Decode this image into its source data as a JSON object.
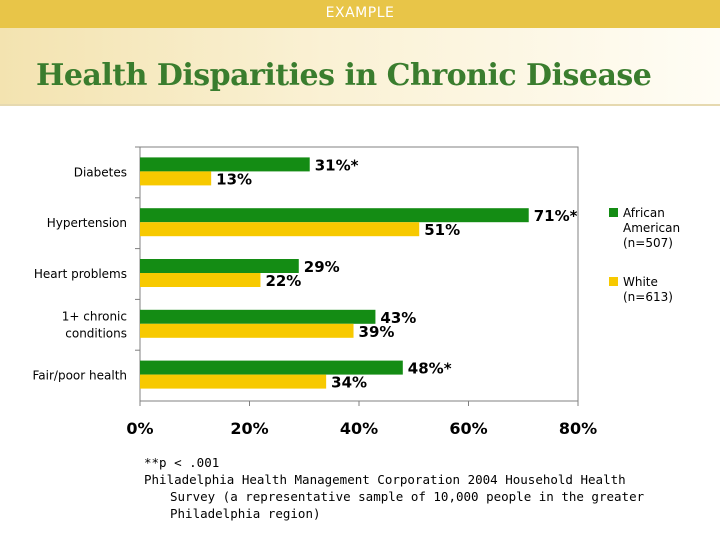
{
  "header": {
    "tag": "EXAMPLE",
    "title": "Health Disparities in Chronic Disease"
  },
  "colors": {
    "african_american": "#148c14",
    "white": "#f7c900",
    "title": "#3a7d2e"
  },
  "chart_data": {
    "type": "bar",
    "orientation": "horizontal",
    "categories": [
      [
        "Diabetes"
      ],
      [
        "Hypertension"
      ],
      [
        "Heart problems"
      ],
      [
        "1+ chronic",
        "conditions"
      ],
      [
        "Fair/poor health"
      ]
    ],
    "series": [
      {
        "name": [
          "African",
          "American",
          "(n=507)"
        ],
        "values": [
          31,
          71,
          29,
          43,
          48
        ],
        "labels": [
          "31%*",
          "71%*",
          "29%",
          "43%",
          "48%*"
        ]
      },
      {
        "name": [
          "White",
          "(n=613)"
        ],
        "values": [
          13,
          51,
          22,
          39,
          34
        ],
        "labels": [
          "13%",
          "51%",
          "22%",
          "39%",
          "34%"
        ]
      }
    ],
    "xlim": [
      0,
      80
    ],
    "ticks": [
      "0%",
      "20%",
      "40%",
      "60%",
      "80%"
    ],
    "legend_position": "right",
    "grid": false
  },
  "footnote": {
    "sig": "**p < .001",
    "source_line1": "Philadelphia Health Management Corporation 2004 Household Health",
    "source_line2": "Survey  (a representative sample of 10,000 people in the greater",
    "source_line3": "Philadelphia region)"
  }
}
